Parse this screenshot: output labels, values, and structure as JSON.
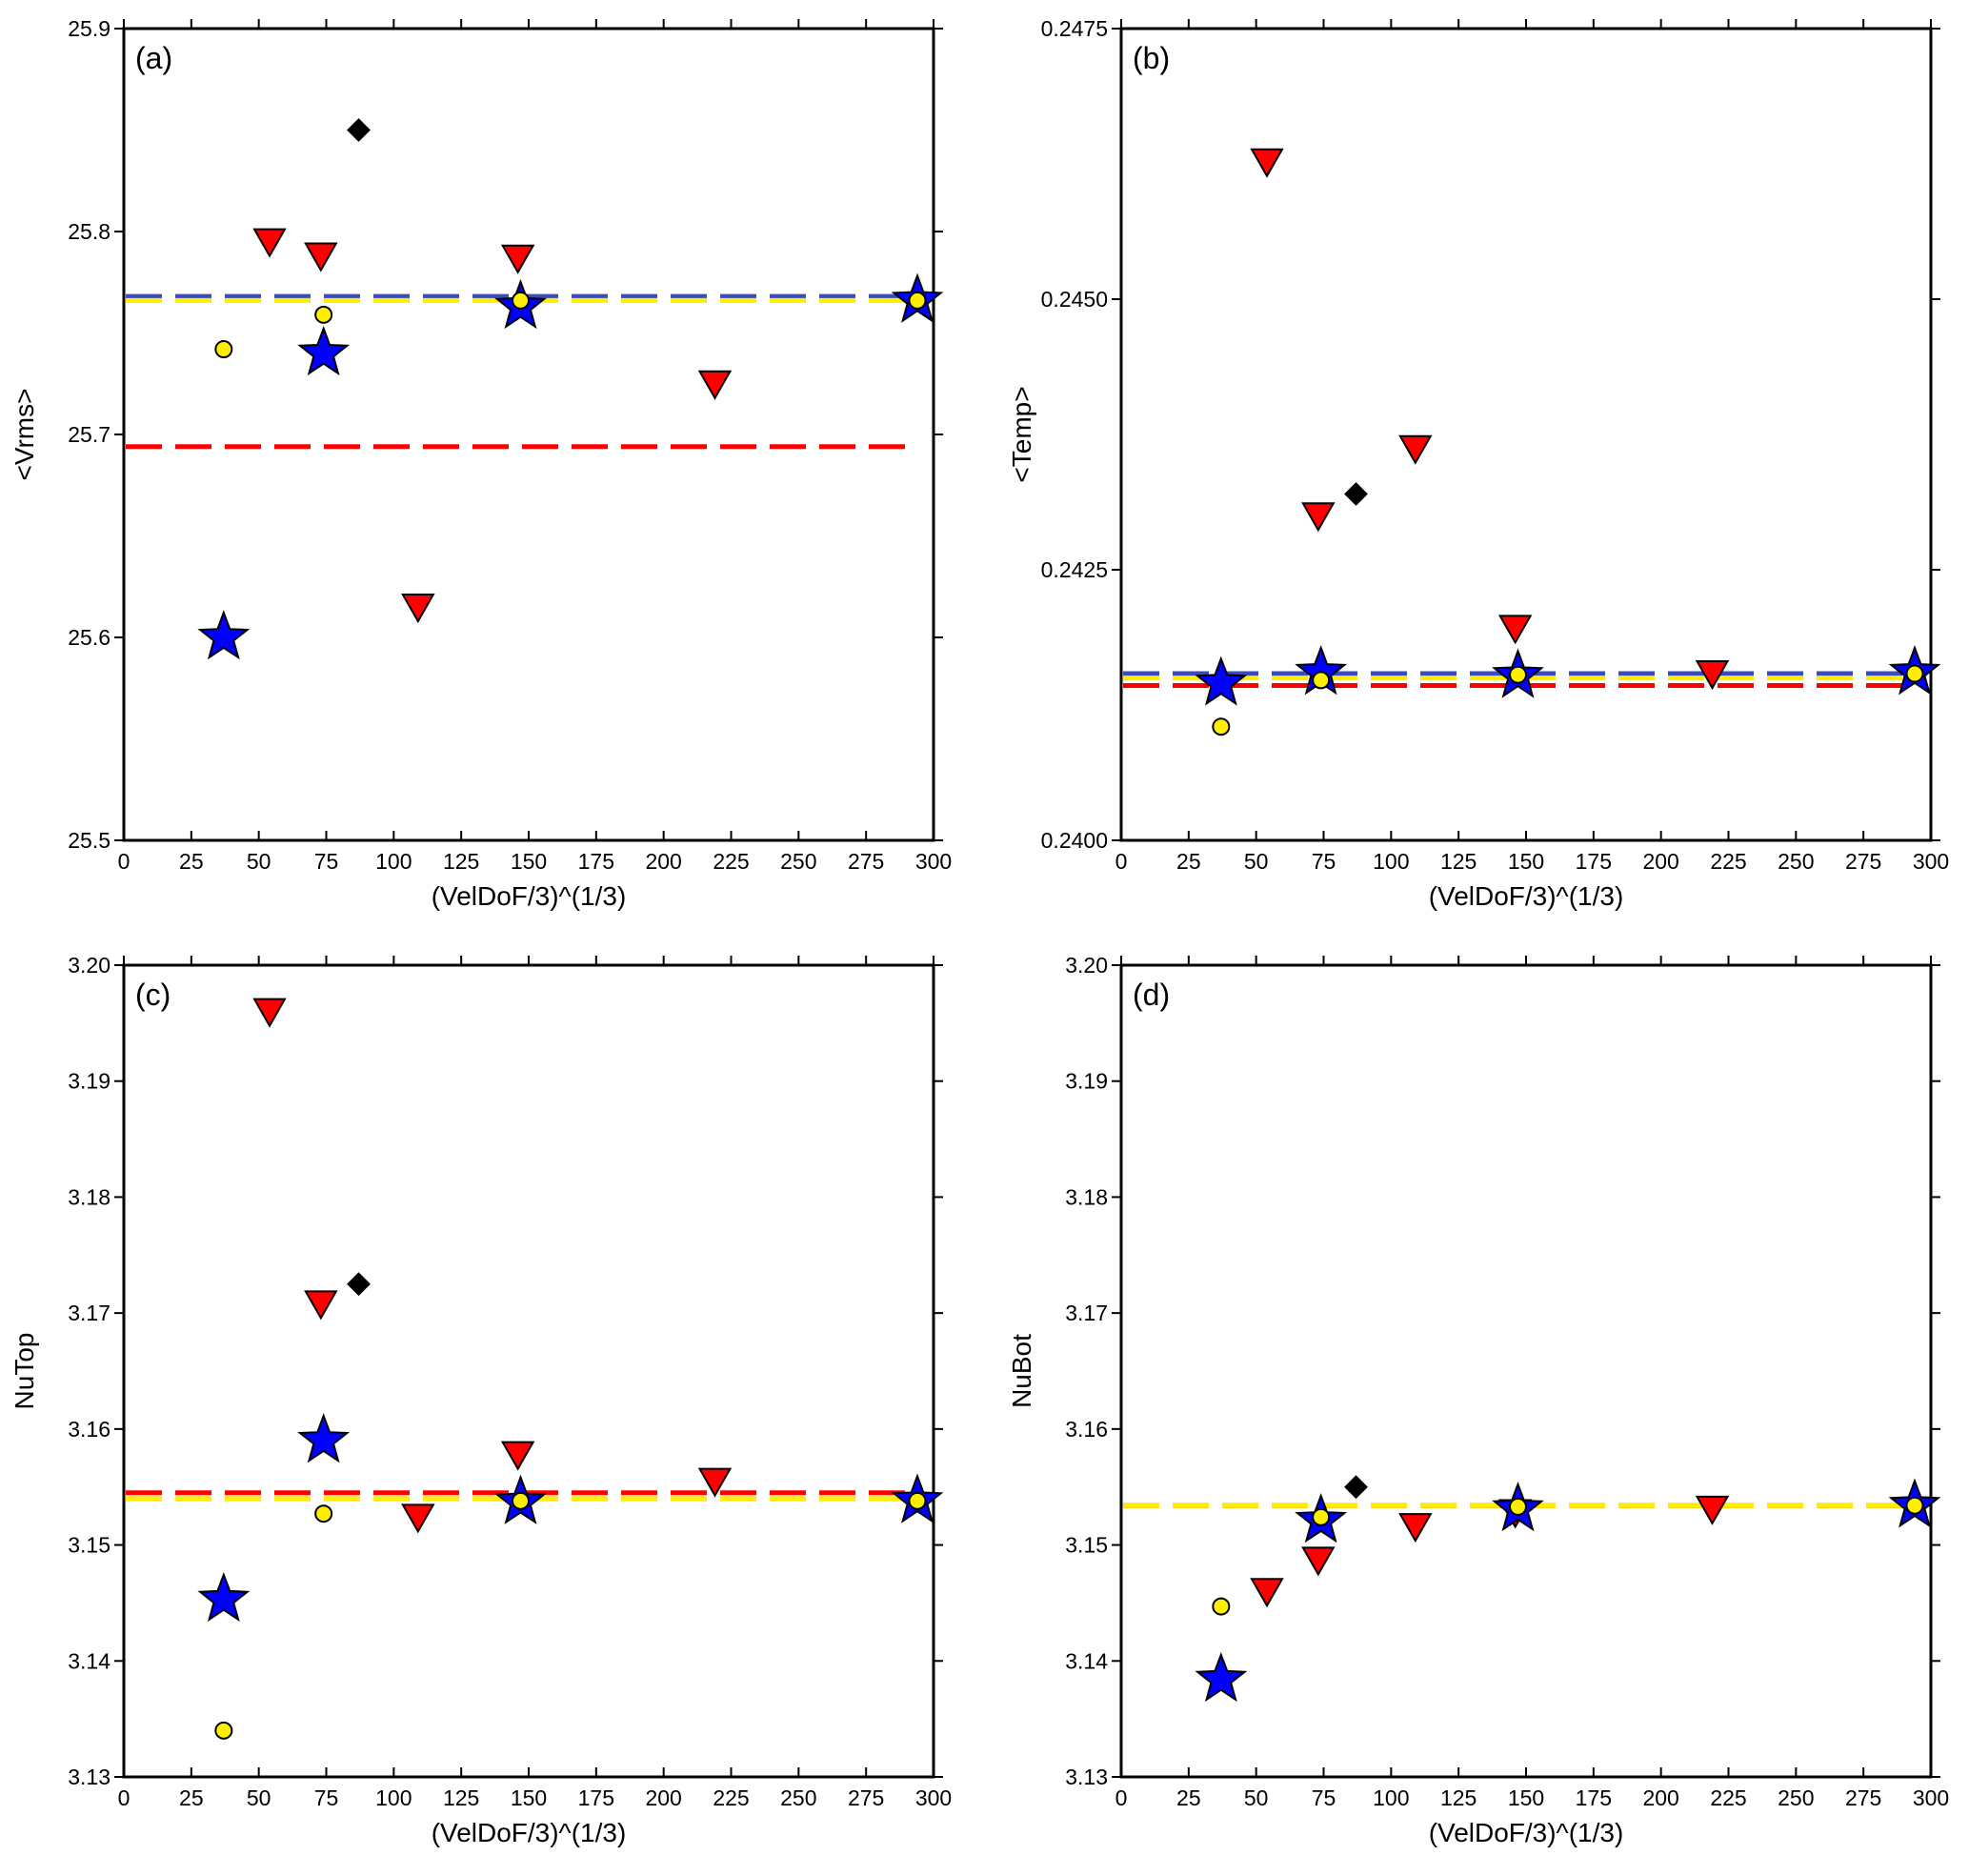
{
  "chart_data": [
    {
      "type": "scatter",
      "panel_label": "(a)",
      "xlabel": "(VelDoF/3)^(1/3)",
      "ylabel": "<Vrms>",
      "xlim": [
        0,
        300
      ],
      "ylim": [
        25.5,
        25.9
      ],
      "xticks": [
        "0",
        "25",
        "50",
        "75",
        "100",
        "125",
        "150",
        "175",
        "200",
        "225",
        "250",
        "275",
        "300"
      ],
      "yticks": [
        "25.5",
        "25.6",
        "25.7",
        "25.8",
        "25.9"
      ],
      "reference_lines": [
        {
          "color": "#3b4cc0",
          "y": 25.768
        },
        {
          "color": "#ffee00",
          "y": 25.766
        },
        {
          "color": "#ff0000",
          "y": 25.694
        }
      ],
      "series": [
        {
          "marker": "triangle-down",
          "color": "#ff0000",
          "points": [
            [
              54,
              25.795
            ],
            [
              73,
              25.788
            ],
            [
              109,
              25.615
            ],
            [
              146,
              25.787
            ],
            [
              219,
              25.725
            ]
          ]
        },
        {
          "marker": "diamond",
          "color": "#000000",
          "points": [
            [
              87,
              25.85
            ]
          ]
        },
        {
          "marker": "star",
          "color": "#0000ff",
          "points": [
            [
              37,
              25.6
            ],
            [
              74,
              25.74
            ],
            [
              147,
              25.763
            ],
            [
              294,
              25.766
            ]
          ]
        },
        {
          "marker": "circle",
          "color": "#ffee00",
          "points": [
            [
              37,
              25.742
            ],
            [
              74,
              25.759
            ],
            [
              147,
              25.766
            ],
            [
              294,
              25.766
            ]
          ]
        }
      ]
    },
    {
      "type": "scatter",
      "panel_label": "(b)",
      "xlabel": "(VelDoF/3)^(1/3)",
      "ylabel": "<Temp>",
      "xlim": [
        0,
        300
      ],
      "ylim": [
        0.24,
        0.2475
      ],
      "xticks": [
        "0",
        "25",
        "50",
        "75",
        "100",
        "125",
        "150",
        "175",
        "200",
        "225",
        "250",
        "275",
        "300"
      ],
      "yticks": [
        "0.2400",
        "0.2425",
        "0.2450",
        "0.2475"
      ],
      "reference_lines": [
        {
          "color": "#3b4cc0",
          "y": 0.24154
        },
        {
          "color": "#ffee00",
          "y": 0.2415
        },
        {
          "color": "#ff0000",
          "y": 0.24143
        }
      ],
      "series": [
        {
          "marker": "triangle-down",
          "color": "#ff0000",
          "points": [
            [
              54,
              0.24627
            ],
            [
              73,
              0.243
            ],
            [
              109,
              0.24362
            ],
            [
              146,
              0.24196
            ],
            [
              219,
              0.24154
            ]
          ]
        },
        {
          "marker": "diamond",
          "color": "#000000",
          "points": [
            [
              87,
              0.2432
            ]
          ]
        },
        {
          "marker": "star",
          "color": "#0000ff",
          "points": [
            [
              37,
              0.24145
            ],
            [
              74,
              0.24155
            ],
            [
              147,
              0.24152
            ],
            [
              294,
              0.24155
            ]
          ]
        },
        {
          "marker": "circle",
          "color": "#ffee00",
          "points": [
            [
              37,
              0.24105
            ],
            [
              74,
              0.24148
            ],
            [
              147,
              0.24153
            ],
            [
              294,
              0.24154
            ]
          ]
        }
      ]
    },
    {
      "type": "scatter",
      "panel_label": "(c)",
      "xlabel": "(VelDoF/3)^(1/3)",
      "ylabel": "NuTop",
      "xlim": [
        0,
        300
      ],
      "ylim": [
        3.13,
        3.2
      ],
      "xticks": [
        "0",
        "25",
        "50",
        "75",
        "100",
        "125",
        "150",
        "175",
        "200",
        "225",
        "250",
        "275",
        "300"
      ],
      "yticks": [
        "3.13",
        "3.14",
        "3.15",
        "3.16",
        "3.17",
        "3.18",
        "3.19",
        "3.20"
      ],
      "reference_lines": [
        {
          "color": "#3b4cc0",
          "y": 3.154
        },
        {
          "color": "#ffee00",
          "y": 3.154
        },
        {
          "color": "#ff0000",
          "y": 3.1545
        }
      ],
      "series": [
        {
          "marker": "triangle-down",
          "color": "#ff0000",
          "points": [
            [
              54,
              3.196
            ],
            [
              73,
              3.1708
            ],
            [
              109,
              3.1524
            ],
            [
              146,
              3.1578
            ],
            [
              219,
              3.1555
            ]
          ]
        },
        {
          "marker": "diamond",
          "color": "#000000",
          "points": [
            [
              87,
              3.1725
            ]
          ]
        },
        {
          "marker": "star",
          "color": "#0000ff",
          "points": [
            [
              37,
              3.1453
            ],
            [
              74,
              3.159
            ],
            [
              147,
              3.1537
            ],
            [
              294,
              3.1538
            ]
          ]
        },
        {
          "marker": "circle",
          "color": "#ffee00",
          "points": [
            [
              37,
              3.134
            ],
            [
              74,
              3.1527
            ],
            [
              147,
              3.1538
            ],
            [
              294,
              3.1538
            ]
          ]
        }
      ]
    },
    {
      "type": "scatter",
      "panel_label": "(d)",
      "xlabel": "(VelDoF/3)^(1/3)",
      "ylabel": "NuBot",
      "xlim": [
        0,
        300
      ],
      "ylim": [
        3.13,
        3.2
      ],
      "xticks": [
        "0",
        "25",
        "50",
        "75",
        "100",
        "125",
        "150",
        "175",
        "200",
        "225",
        "250",
        "275",
        "300"
      ],
      "yticks": [
        "3.13",
        "3.14",
        "3.15",
        "3.16",
        "3.17",
        "3.18",
        "3.19",
        "3.20"
      ],
      "reference_lines": [
        {
          "color": "#ff0000",
          "y": 3.1534
        },
        {
          "color": "#ffee00",
          "y": 3.1534
        }
      ],
      "series": [
        {
          "marker": "triangle-down",
          "color": "#ff0000",
          "points": [
            [
              54,
              3.146
            ],
            [
              73,
              3.1487
            ],
            [
              109,
              3.1516
            ],
            [
              146,
              3.1528
            ],
            [
              219,
              3.1531
            ]
          ]
        },
        {
          "marker": "diamond",
          "color": "#000000",
          "points": [
            [
              87,
              3.155
            ]
          ]
        },
        {
          "marker": "star",
          "color": "#0000ff",
          "points": [
            [
              37,
              3.1384
            ],
            [
              74,
              3.1521
            ],
            [
              147,
              3.1531
            ],
            [
              294,
              3.1534
            ]
          ]
        },
        {
          "marker": "circle",
          "color": "#ffee00",
          "points": [
            [
              37,
              3.1447
            ],
            [
              74,
              3.1524
            ],
            [
              147,
              3.1533
            ],
            [
              294,
              3.1534
            ]
          ]
        }
      ]
    }
  ]
}
